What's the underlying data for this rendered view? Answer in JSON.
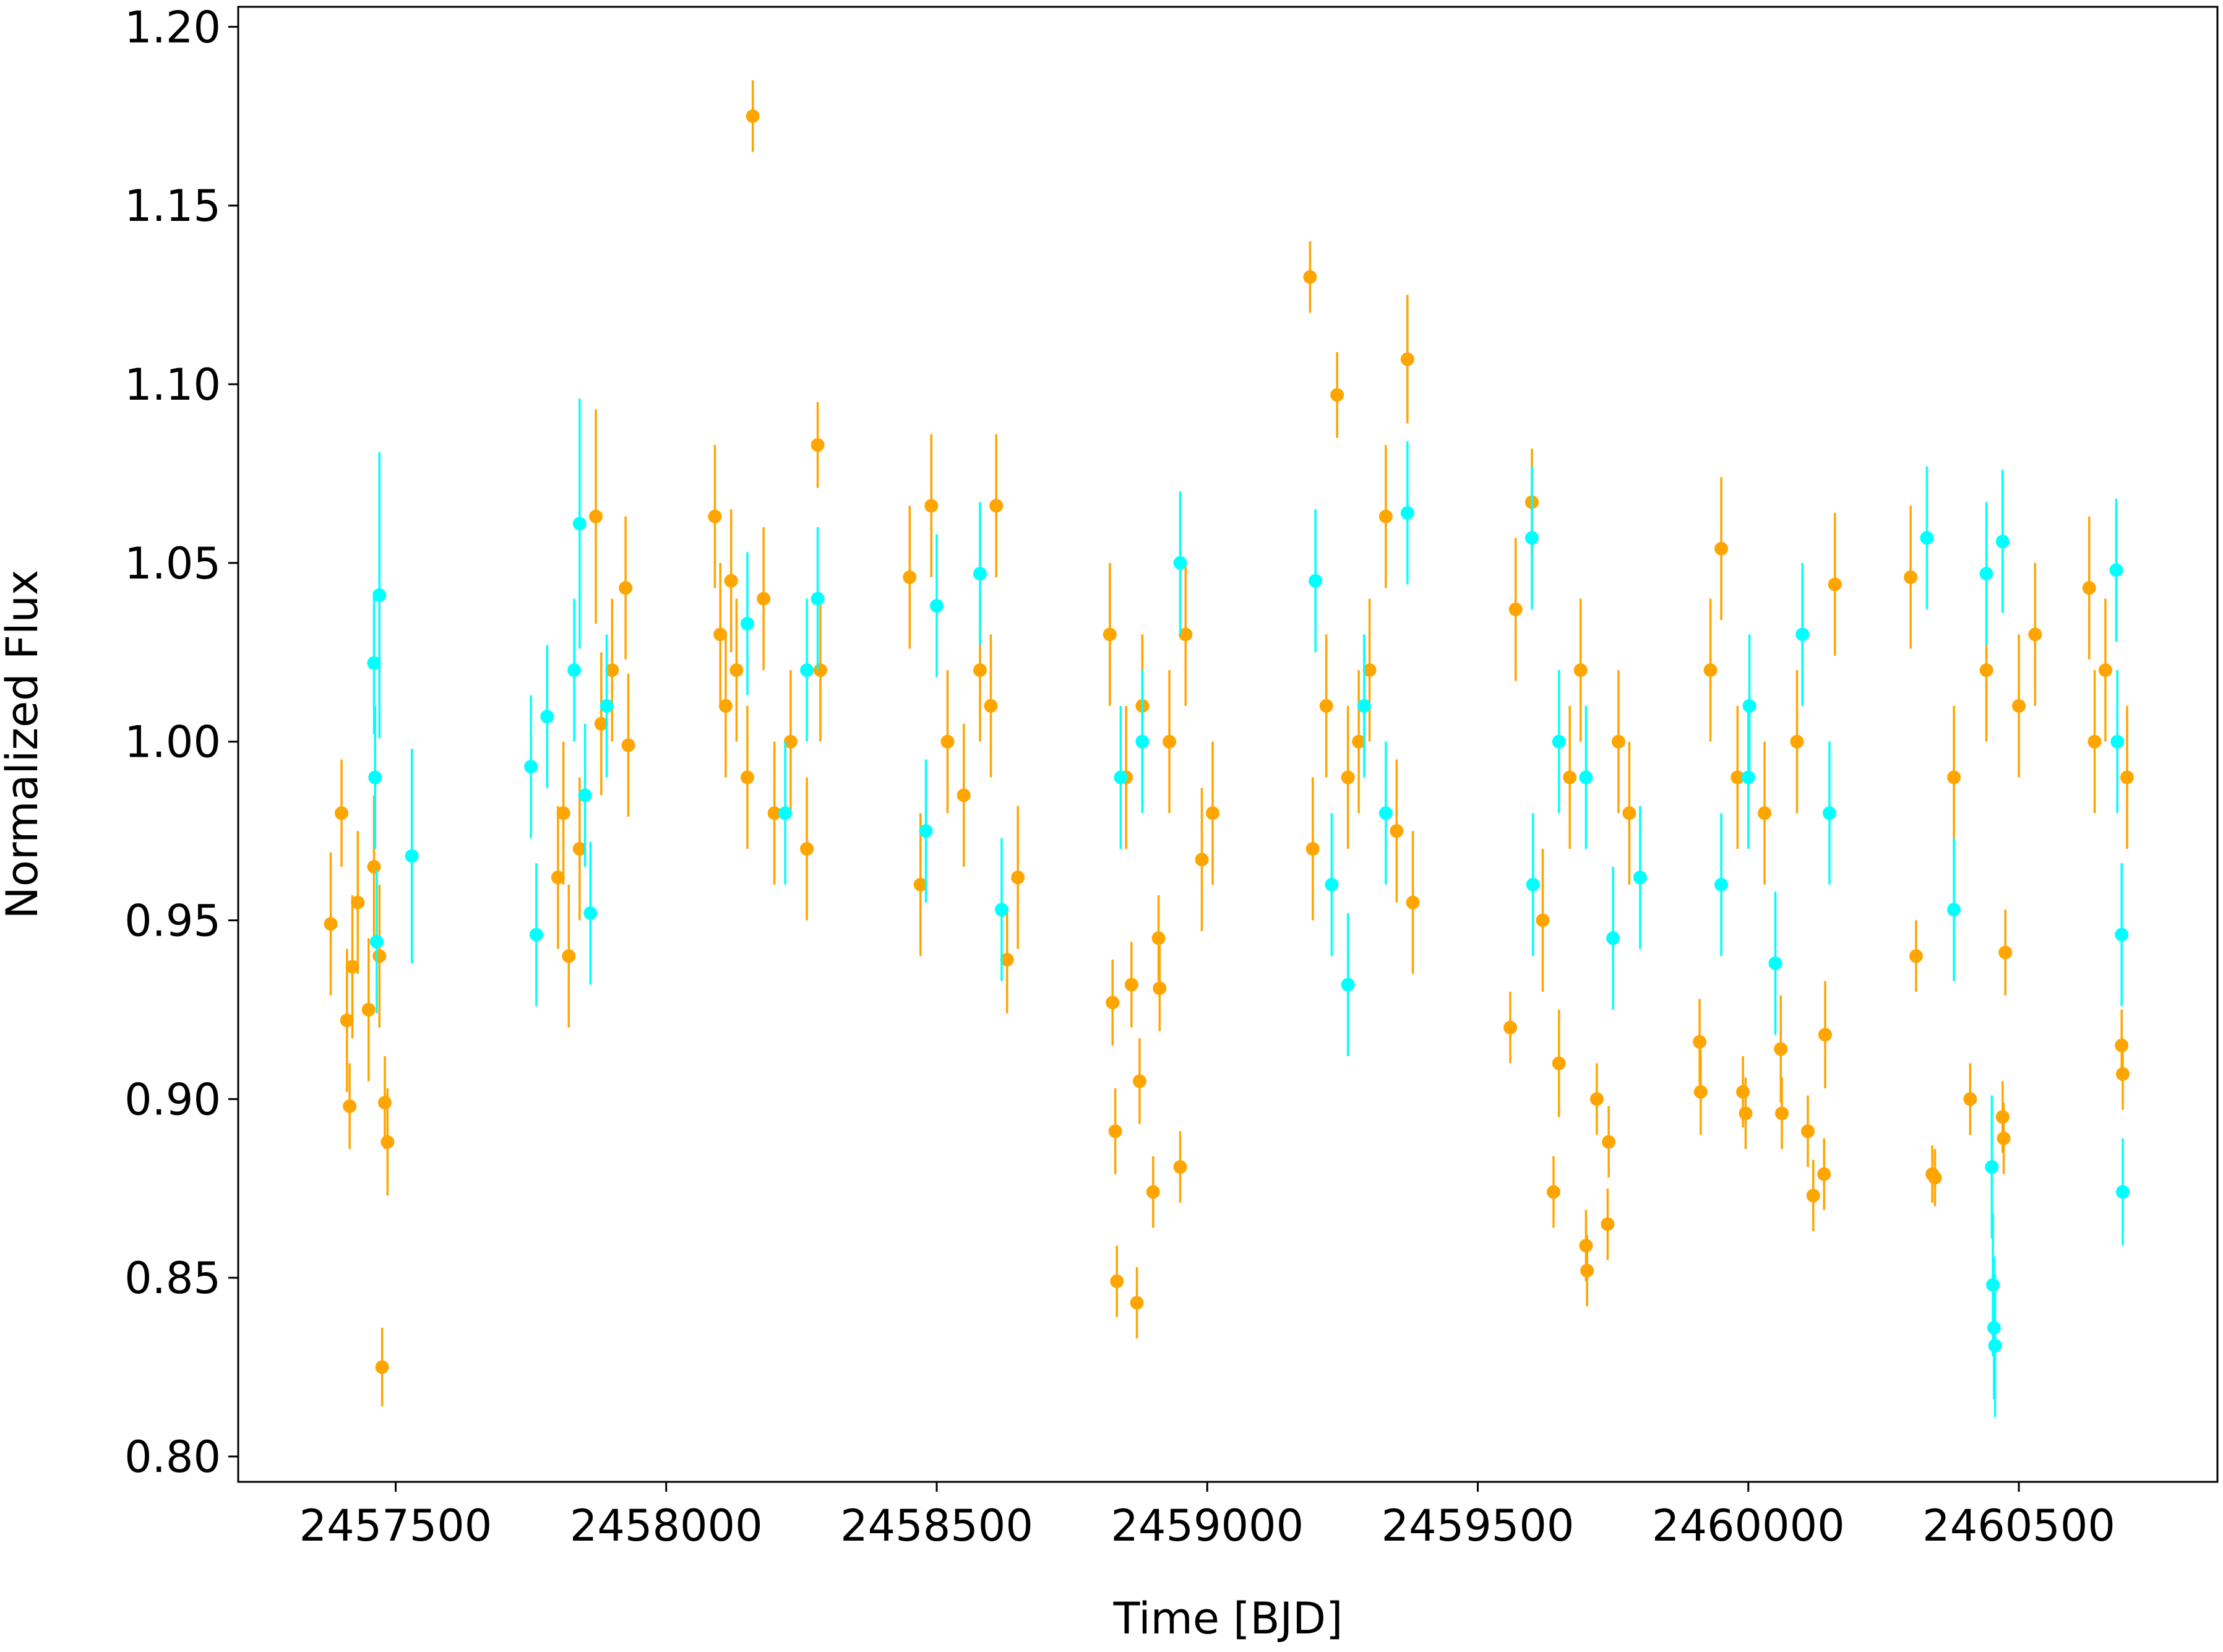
{
  "chart_data": {
    "type": "errorbar",
    "xlabel": "Time [BJD]",
    "ylabel": "Normalized Flux",
    "xlim": [
      2457209,
      2460867
    ],
    "ylim": [
      0.7929,
      1.2056
    ],
    "xticks": [
      2457500,
      2458000,
      2458500,
      2459000,
      2459500,
      2460000,
      2460500
    ],
    "yticks": [
      {
        "value": 0.8,
        "label": "0.80"
      },
      0.85,
      {
        "value": 0.9,
        "label": "0.90"
      },
      0.95,
      {
        "value": 1.0,
        "label": "1.00"
      },
      1.05,
      {
        "value": 1.1,
        "label": "1.10"
      },
      1.15,
      {
        "value": 1.2,
        "label": "1.20"
      }
    ],
    "series": [
      {
        "color": "#ffa500",
        "x": [
          2457380,
          2457400,
          2457410,
          2457415,
          2457430,
          2457450,
          2457460,
          2457475,
          2457480,
          2457485,
          2457470,
          2457420,
          2457800,
          2457820,
          2457840,
          2457870,
          2457900,
          2457925,
          2457930,
          2457880,
          2457810,
          2458090,
          2458100,
          2458110,
          2458130,
          2458150,
          2458160,
          2458180,
          2458200,
          2458230,
          2458260,
          2458280,
          2458285,
          2458120,
          2458450,
          2458470,
          2458490,
          2458520,
          2458550,
          2458580,
          2458610,
          2458630,
          2458650,
          2458600,
          2458820,
          2458825,
          2458830,
          2458833,
          2458860,
          2458870,
          2458875,
          2458900,
          2458910,
          2458912,
          2458950,
          2458930,
          2458960,
          2458990,
          2459010,
          2458850,
          2458880,
          2459190,
          2459195,
          2459240,
          2459260,
          2459300,
          2459330,
          2459350,
          2459370,
          2459380,
          2459220,
          2459280,
          2459560,
          2459570,
          2459600,
          2459640,
          2459650,
          2459670,
          2459700,
          2459702,
          2459720,
          2459740,
          2459742,
          2459760,
          2459690,
          2459620,
          2459780,
          2459910,
          2459912,
          2459930,
          2459950,
          2459980,
          2459990,
          2459995,
          2460060,
          2460062,
          2460110,
          2460120,
          2460140,
          2460142,
          2460160,
          2460090,
          2460030,
          2460300,
          2460310,
          2460340,
          2460345,
          2460380,
          2460410,
          2460440,
          2460470,
          2460472,
          2460475,
          2460500,
          2460530,
          2460630,
          2460640,
          2460660,
          2460690,
          2460692,
          2460700
        ],
        "y": [
          0.949,
          0.98,
          0.922,
          0.898,
          0.955,
          0.925,
          0.965,
          0.825,
          0.899,
          0.888,
          0.94,
          0.937,
          0.962,
          0.94,
          0.97,
          1.063,
          1.02,
          1.043,
          0.999,
          1.005,
          0.98,
          1.063,
          1.03,
          1.01,
          1.02,
          0.99,
          1.175,
          1.04,
          0.98,
          1.0,
          0.97,
          1.083,
          1.02,
          1.045,
          1.046,
          0.96,
          1.066,
          1.0,
          0.985,
          1.02,
          1.066,
          0.939,
          0.962,
          1.01,
          1.03,
          0.927,
          0.891,
          0.849,
          0.932,
          0.843,
          0.905,
          0.874,
          0.945,
          0.931,
          0.881,
          1.0,
          1.03,
          0.967,
          0.98,
          0.99,
          1.01,
          1.13,
          0.97,
          1.097,
          0.99,
          1.02,
          1.063,
          0.975,
          1.107,
          0.955,
          1.01,
          1.0,
          0.92,
          1.037,
          1.067,
          0.874,
          0.91,
          0.99,
          0.859,
          0.852,
          0.9,
          0.865,
          0.888,
          1.0,
          1.02,
          0.95,
          0.98,
          0.916,
          0.902,
          1.02,
          1.054,
          0.99,
          0.902,
          0.896,
          0.914,
          0.896,
          0.891,
          0.873,
          0.879,
          0.918,
          1.044,
          1.0,
          0.98,
          1.046,
          0.94,
          0.879,
          0.878,
          0.99,
          0.9,
          1.02,
          0.895,
          0.889,
          0.941,
          1.01,
          1.03,
          1.043,
          1.0,
          1.02,
          0.915,
          0.907,
          0.99
        ],
        "yerr": [
          0.02,
          0.015,
          0.02,
          0.012,
          0.02,
          0.02,
          0.02,
          0.011,
          0.013,
          0.015,
          0.02,
          0.02,
          0.02,
          0.02,
          0.02,
          0.03,
          0.02,
          0.02,
          0.02,
          0.02,
          0.02,
          0.02,
          0.02,
          0.02,
          0.02,
          0.02,
          0.01,
          0.02,
          0.02,
          0.02,
          0.02,
          0.012,
          0.02,
          0.02,
          0.02,
          0.02,
          0.02,
          0.02,
          0.02,
          0.02,
          0.02,
          0.015,
          0.02,
          0.02,
          0.02,
          0.012,
          0.012,
          0.01,
          0.012,
          0.01,
          0.012,
          0.01,
          0.012,
          0.012,
          0.01,
          0.02,
          0.02,
          0.02,
          0.02,
          0.02,
          0.02,
          0.01,
          0.02,
          0.012,
          0.02,
          0.02,
          0.02,
          0.02,
          0.018,
          0.02,
          0.02,
          0.02,
          0.01,
          0.02,
          0.015,
          0.01,
          0.015,
          0.02,
          0.01,
          0.01,
          0.01,
          0.01,
          0.01,
          0.02,
          0.02,
          0.02,
          0.02,
          0.012,
          0.012,
          0.02,
          0.02,
          0.02,
          0.01,
          0.01,
          0.015,
          0.01,
          0.01,
          0.01,
          0.01,
          0.015,
          0.02,
          0.02,
          0.02,
          0.02,
          0.01,
          0.008,
          0.008,
          0.02,
          0.01,
          0.02,
          0.01,
          0.01,
          0.012,
          0.02,
          0.02,
          0.02,
          0.02,
          0.02,
          0.01,
          0.01,
          0.02
        ]
      },
      {
        "color": "#00ffff",
        "x": [
          2457460,
          2457465,
          2457470,
          2457462,
          2457530,
          2457750,
          2457760,
          2457780,
          2457840,
          2457850,
          2457830,
          2457860,
          2457890,
          2458150,
          2458220,
          2458260,
          2458280,
          2458500,
          2458580,
          2458620,
          2458480,
          2458950,
          2458880,
          2458840,
          2459200,
          2459230,
          2459260,
          2459290,
          2459370,
          2459330,
          2459600,
          2459602,
          2459650,
          2459750,
          2459800,
          2459700,
          2459950,
          2460000,
          2460050,
          2460100,
          2460150,
          2460002,
          2460330,
          2460380,
          2460440,
          2460450,
          2460452,
          2460454,
          2460456,
          2460470,
          2460680,
          2460690,
          2460692,
          2460682
        ],
        "y": [
          1.022,
          0.944,
          1.041,
          0.99,
          0.968,
          0.993,
          0.946,
          1.007,
          1.061,
          0.985,
          1.02,
          0.952,
          1.01,
          1.033,
          0.98,
          1.02,
          1.04,
          1.038,
          1.047,
          0.953,
          0.975,
          1.05,
          1.0,
          0.99,
          1.045,
          0.96,
          0.932,
          1.01,
          1.064,
          0.98,
          1.057,
          0.96,
          1.0,
          0.945,
          0.962,
          0.99,
          0.96,
          0.99,
          0.938,
          1.03,
          0.98,
          1.01,
          1.057,
          0.953,
          1.047,
          0.881,
          0.848,
          0.836,
          0.831,
          1.056,
          1.048,
          0.946,
          0.874,
          1.0
        ],
        "yerr": [
          0.02,
          0.02,
          0.04,
          0.02,
          0.03,
          0.02,
          0.02,
          0.02,
          0.035,
          0.02,
          0.02,
          0.02,
          0.02,
          0.02,
          0.02,
          0.02,
          0.02,
          0.02,
          0.02,
          0.02,
          0.02,
          0.02,
          0.02,
          0.02,
          0.02,
          0.02,
          0.02,
          0.02,
          0.02,
          0.02,
          0.02,
          0.02,
          0.02,
          0.02,
          0.02,
          0.02,
          0.02,
          0.02,
          0.02,
          0.02,
          0.02,
          0.02,
          0.02,
          0.02,
          0.02,
          0.02,
          0.02,
          0.02,
          0.02,
          0.02,
          0.02,
          0.02,
          0.015,
          0.02
        ]
      }
    ]
  }
}
